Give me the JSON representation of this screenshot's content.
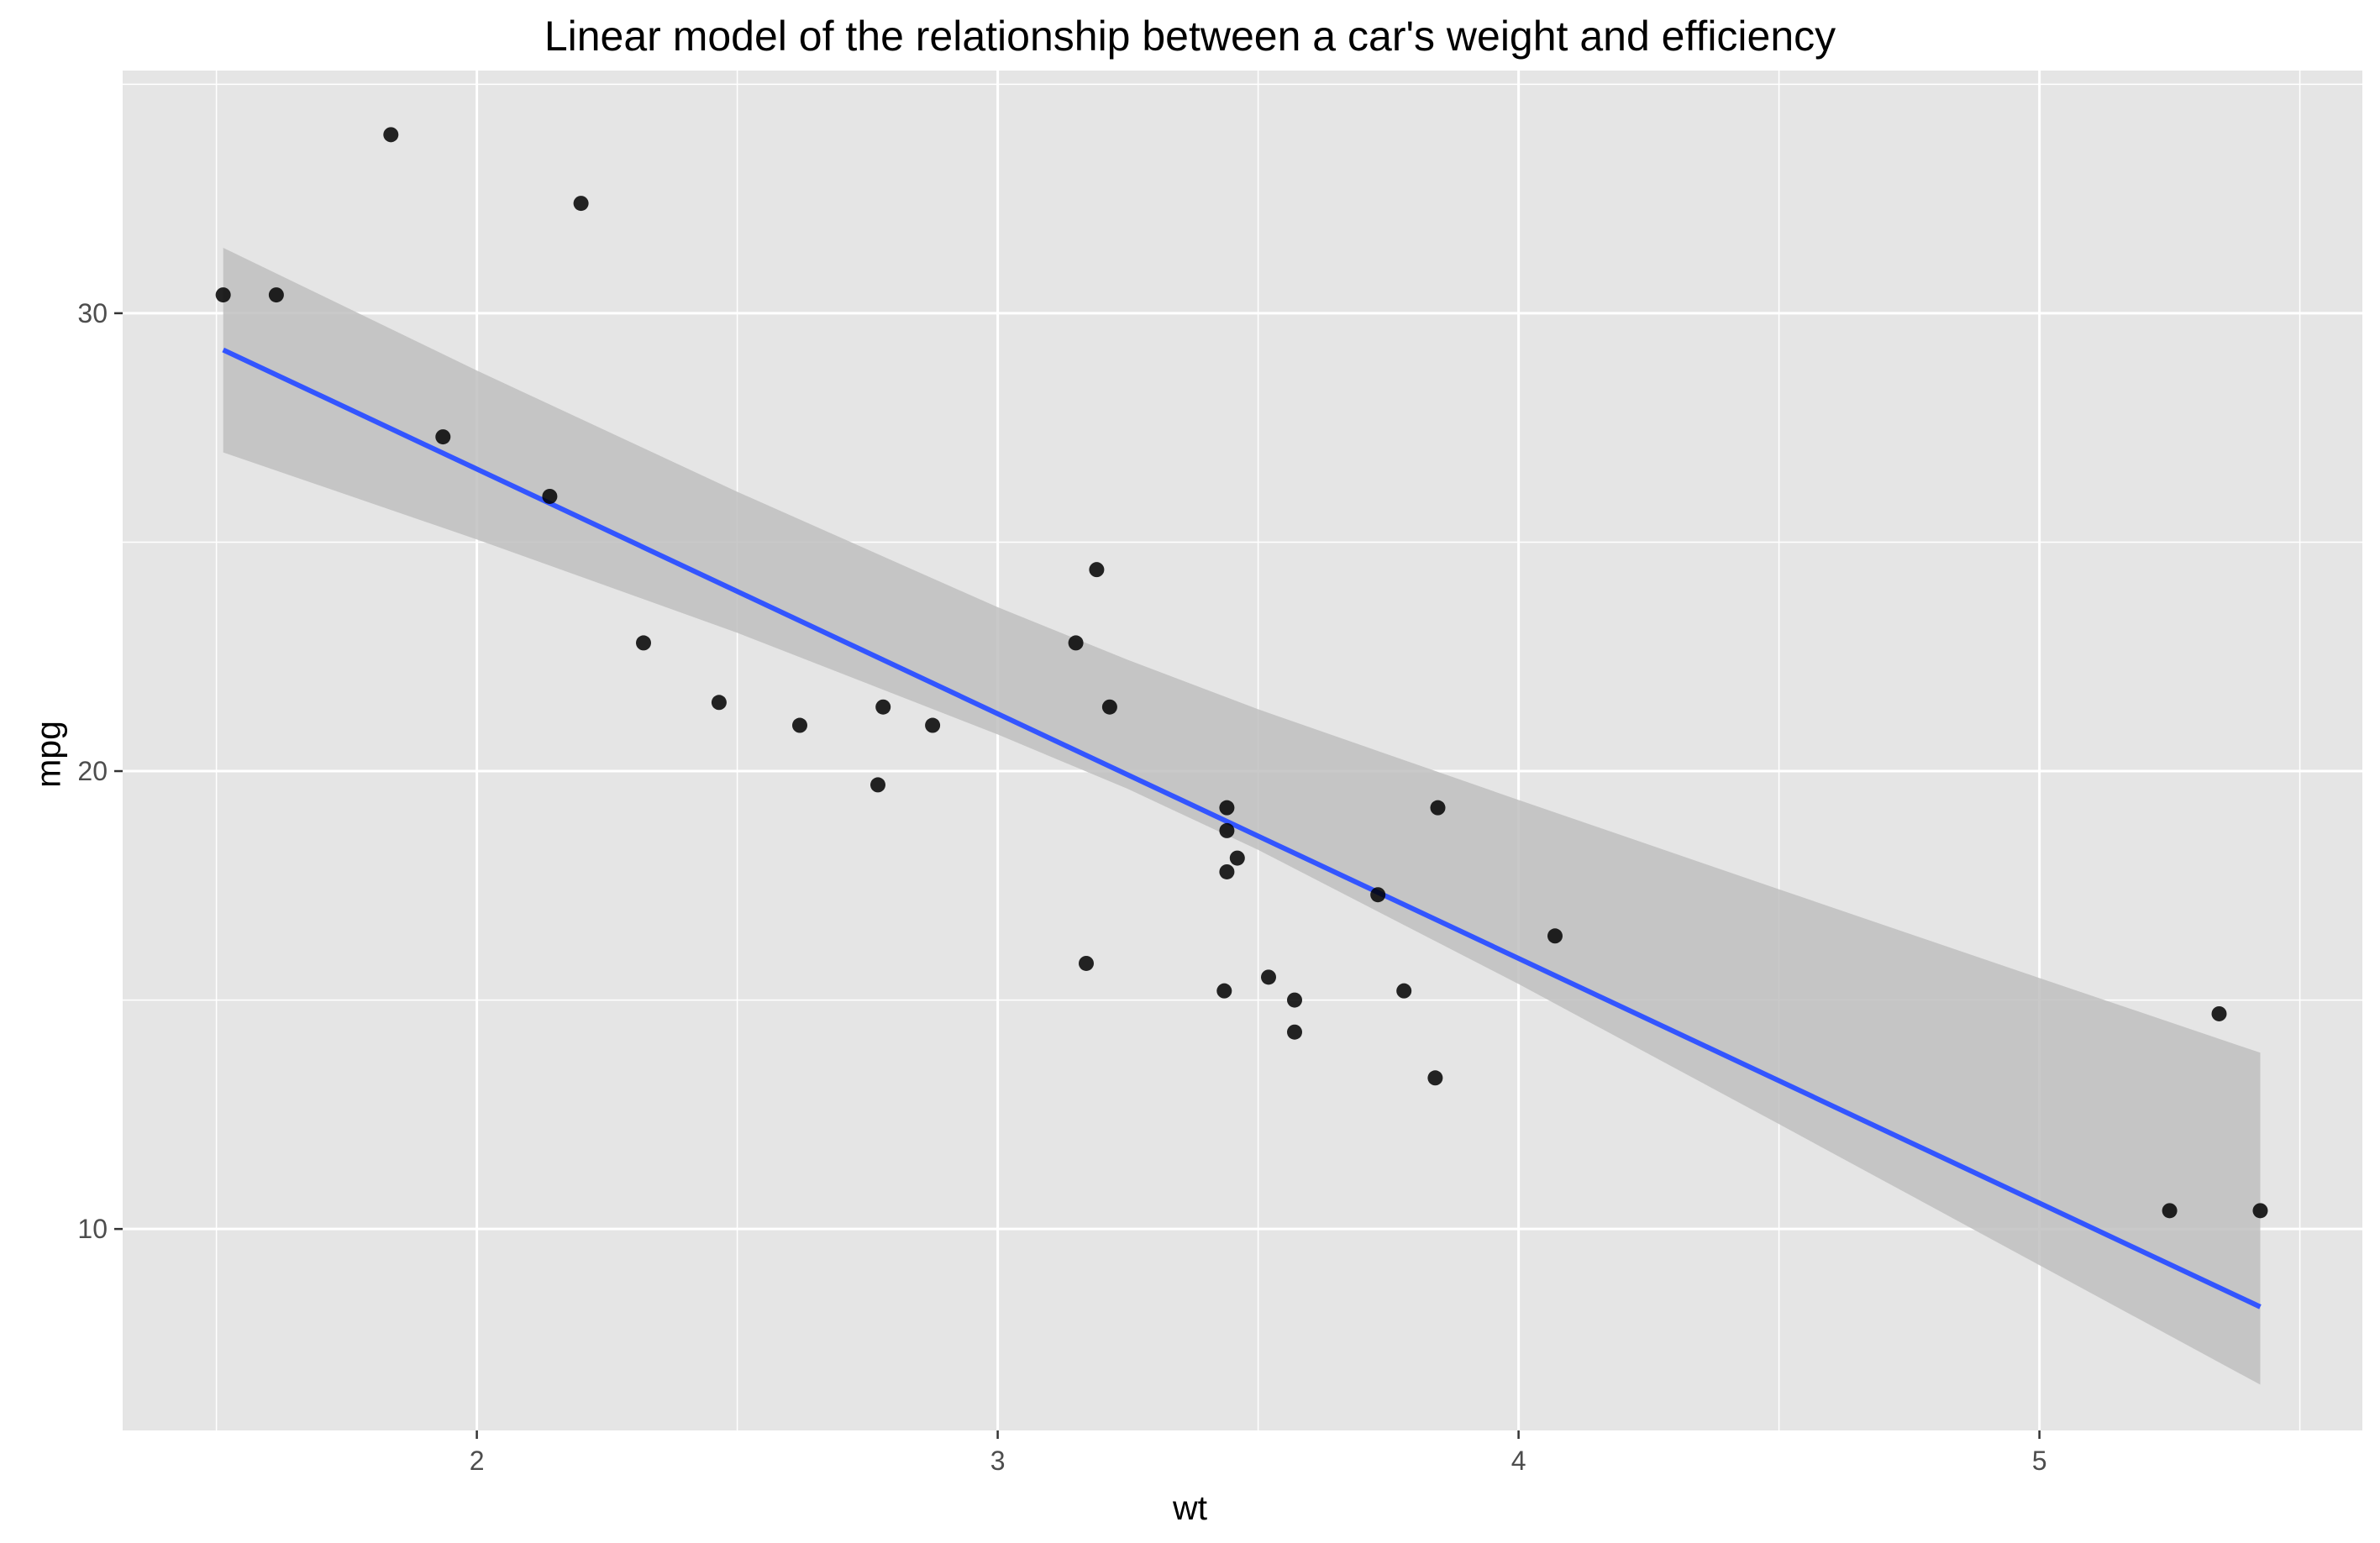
{
  "chart_data": {
    "type": "scatter",
    "title": "Linear model of the relationship between a car's weight and efficiency",
    "xlabel": "wt",
    "ylabel": "mpg",
    "xlim": [
      1.32,
      5.62
    ],
    "ylim": [
      5.6,
      35.3
    ],
    "x_ticks": [
      2,
      3,
      4,
      5
    ],
    "x_minor_ticks": [
      1.5,
      2.5,
      3.5,
      4.5,
      5.5
    ],
    "y_ticks": [
      10,
      20,
      30
    ],
    "y_minor_ticks": [
      5,
      15,
      25,
      35
    ],
    "grid": true,
    "points": [
      {
        "x": 1.513,
        "y": 30.4
      },
      {
        "x": 1.615,
        "y": 30.4
      },
      {
        "x": 1.835,
        "y": 33.9
      },
      {
        "x": 1.935,
        "y": 27.3
      },
      {
        "x": 2.14,
        "y": 26.0
      },
      {
        "x": 2.2,
        "y": 32.4
      },
      {
        "x": 2.32,
        "y": 22.8
      },
      {
        "x": 2.465,
        "y": 21.5
      },
      {
        "x": 2.62,
        "y": 21.0
      },
      {
        "x": 2.77,
        "y": 19.7
      },
      {
        "x": 2.78,
        "y": 21.4
      },
      {
        "x": 2.875,
        "y": 21.0
      },
      {
        "x": 3.15,
        "y": 22.8
      },
      {
        "x": 3.17,
        "y": 15.8
      },
      {
        "x": 3.19,
        "y": 24.4
      },
      {
        "x": 3.215,
        "y": 21.4
      },
      {
        "x": 3.435,
        "y": 15.2
      },
      {
        "x": 3.44,
        "y": 18.7
      },
      {
        "x": 3.44,
        "y": 19.2
      },
      {
        "x": 3.44,
        "y": 17.8
      },
      {
        "x": 3.46,
        "y": 18.1
      },
      {
        "x": 3.52,
        "y": 15.5
      },
      {
        "x": 3.57,
        "y": 14.3
      },
      {
        "x": 3.57,
        "y": 15.0
      },
      {
        "x": 3.73,
        "y": 17.3
      },
      {
        "x": 3.78,
        "y": 15.2
      },
      {
        "x": 3.84,
        "y": 13.3
      },
      {
        "x": 3.845,
        "y": 19.2
      },
      {
        "x": 4.07,
        "y": 16.4
      },
      {
        "x": 5.25,
        "y": 10.4
      },
      {
        "x": 5.345,
        "y": 14.7
      },
      {
        "x": 5.424,
        "y": 10.4
      }
    ],
    "trend_line": {
      "method": "lm",
      "intercept": 37.285,
      "slope": -5.344,
      "x_range": [
        1.513,
        5.424
      ]
    },
    "confidence_band": {
      "x": [
        1.513,
        2.0,
        2.5,
        3.0,
        3.25,
        3.5,
        4.0,
        4.5,
        5.0,
        5.424
      ],
      "lower": [
        26.96,
        25.06,
        23.02,
        20.8,
        19.61,
        18.28,
        15.35,
        12.29,
        9.21,
        6.6
      ],
      "upper": [
        31.43,
        28.75,
        26.1,
        23.58,
        22.43,
        21.35,
        19.37,
        17.42,
        15.48,
        13.85
      ]
    },
    "colors": {
      "panel_background": "#e5e5e5",
      "grid": "#ffffff",
      "points": "#000000",
      "trend_line": "#3355ff",
      "band": "#bfbfbf"
    }
  }
}
